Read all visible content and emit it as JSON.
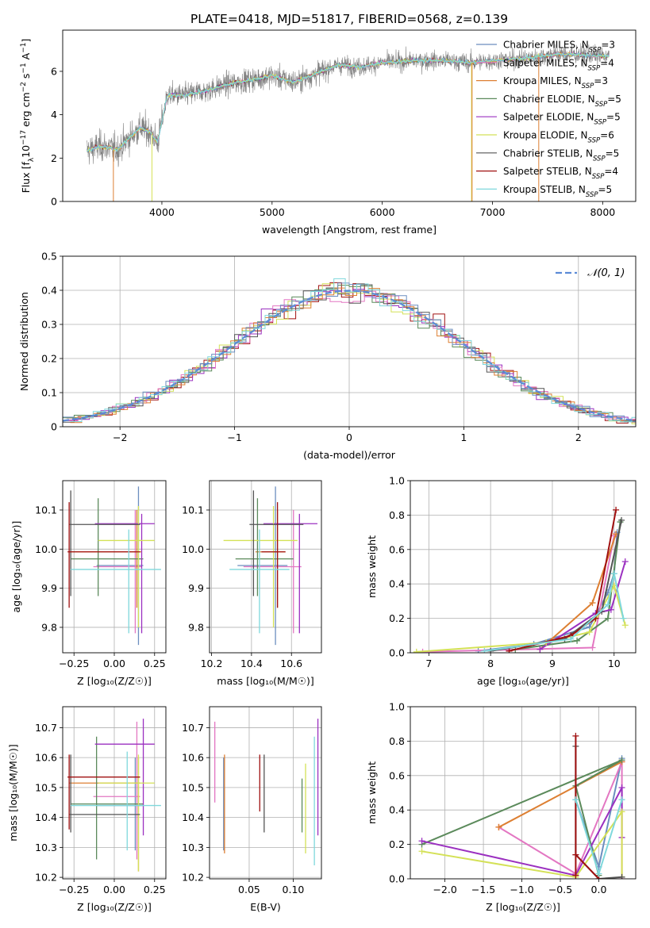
{
  "figure_title": "PLATE=0418, MJD=51817, FIBERID=0568, z=0.139",
  "models": [
    {
      "name": "Chabrier MILES, N",
      "sub": "SSP",
      "n": "=3",
      "color": "#6c8ebf"
    },
    {
      "name": "Salpeter MILES, N",
      "sub": "SSP",
      "n": "=4",
      "color": "#e377c2"
    },
    {
      "name": "Kroupa MILES, N",
      "sub": "SSP",
      "n": "=3",
      "color": "#dd7f32"
    },
    {
      "name": "Chabrier ELODIE, N",
      "sub": "SSP",
      "n": "=5",
      "color": "#5b8a5b"
    },
    {
      "name": "Salpeter ELODIE, N",
      "sub": "SSP",
      "n": "=5",
      "color": "#9b30c0"
    },
    {
      "name": "Kroupa ELODIE, N",
      "sub": "SSP",
      "n": "=6",
      "color": "#d4e157"
    },
    {
      "name": "Chabrier STELIB, N",
      "sub": "SSP",
      "n": "=5",
      "color": "#555555"
    },
    {
      "name": "Salpeter STELIB, N",
      "sub": "SSP",
      "n": "=4",
      "color": "#a01010"
    },
    {
      "name": "Kroupa STELIB, N",
      "sub": "SSP",
      "n": "=5",
      "color": "#7fd8dc"
    }
  ],
  "chart_data": [
    {
      "id": "spectrum",
      "type": "line",
      "xlabel": "wavelength [Angstrom, rest frame]",
      "ylabel_parts": [
        "Flux [f",
        "λ",
        "10",
        "−17",
        " erg cm",
        "−2",
        " s",
        "−1",
        " A",
        "−1",
        "]"
      ],
      "xlim": [
        3100,
        8300
      ],
      "ylim": [
        0,
        7.9
      ],
      "xticks": [
        4000,
        5000,
        6000,
        7000,
        8000
      ],
      "yticks": [
        0,
        2,
        4,
        6
      ],
      "observed_color": "#808080",
      "model_color": "#7fd8dc",
      "continuum": [
        [
          3320,
          2.35
        ],
        [
          3450,
          2.55
        ],
        [
          3600,
          2.4
        ],
        [
          3700,
          2.9
        ],
        [
          3800,
          3.4
        ],
        [
          3900,
          3.2
        ],
        [
          3960,
          2.7
        ],
        [
          4050,
          4.9
        ],
        [
          4200,
          4.9
        ],
        [
          4400,
          5.1
        ],
        [
          4600,
          5.4
        ],
        [
          4800,
          5.6
        ],
        [
          5000,
          5.8
        ],
        [
          5200,
          5.5
        ],
        [
          5400,
          5.9
        ],
        [
          5600,
          6.3
        ],
        [
          5800,
          6.2
        ],
        [
          6000,
          6.4
        ],
        [
          6300,
          6.5
        ],
        [
          6560,
          6.5
        ],
        [
          6800,
          6.4
        ],
        [
          7000,
          6.5
        ],
        [
          7300,
          6.6
        ],
        [
          7600,
          6.8
        ],
        [
          8050,
          6.7
        ]
      ]
    },
    {
      "id": "residuals",
      "type": "histogram",
      "xlabel": "(data-model)/error",
      "ylabel": "Normed distribution",
      "xlim": [
        -2.5,
        2.5
      ],
      "ylim": [
        0,
        0.5
      ],
      "xticks": [
        -2,
        -1,
        0,
        1,
        2
      ],
      "yticks": [
        0,
        0.1,
        0.2,
        0.3,
        0.4,
        0.5
      ],
      "bin_width": 0.1,
      "legend": "𝒩(0, 1)",
      "reference": {
        "mean": 0,
        "sigma": 1,
        "color": "#5b8bd6"
      }
    },
    {
      "id": "age_vs_Z",
      "type": "errorbar",
      "xlabel": "Z [log₁₀(Z/Z☉)]",
      "ylabel": "age  [log₁₀(age/yr)]",
      "xlim": [
        -0.32,
        0.32
      ],
      "ylim": [
        9.735,
        10.175
      ],
      "xticks": [
        -0.25,
        0,
        0.25
      ],
      "xtick_labels": [
        "−0.25",
        "0.00",
        "0.25"
      ],
      "yticks": [
        9.8,
        9.9,
        10.0,
        10.1
      ],
      "ytick_labels": [
        "9.8",
        "9.9",
        "10.0",
        "10.1"
      ],
      "points": [
        {
          "x": 0.15,
          "y": 9.958,
          "xlo": -0.11,
          "xhi": 0.18,
          "ylo": 9.755,
          "yhi": 10.16,
          "c": 0
        },
        {
          "x": 0.13,
          "y": 9.955,
          "xlo": -0.13,
          "xhi": 0.17,
          "ylo": 9.785,
          "yhi": 10.1,
          "c": 1
        },
        {
          "x": 0.14,
          "y": 9.993,
          "xlo": -0.28,
          "xhi": 0.17,
          "ylo": 9.85,
          "yhi": 10.1,
          "c": 2
        },
        {
          "x": -0.1,
          "y": 9.975,
          "xlo": -0.27,
          "xhi": 0.18,
          "ylo": 9.88,
          "yhi": 10.13,
          "c": 3
        },
        {
          "x": 0.17,
          "y": 10.065,
          "xlo": -0.12,
          "xhi": 0.25,
          "ylo": 9.785,
          "yhi": 10.09,
          "c": 4
        },
        {
          "x": 0.15,
          "y": 10.022,
          "xlo": -0.1,
          "xhi": 0.25,
          "ylo": 9.8,
          "yhi": 10.11,
          "c": 5
        },
        {
          "x": -0.27,
          "y": 10.063,
          "xlo": -0.28,
          "xhi": 0.16,
          "ylo": 9.88,
          "yhi": 10.15,
          "c": 6
        },
        {
          "x": -0.28,
          "y": 9.993,
          "xlo": -0.29,
          "xhi": 0.16,
          "ylo": 9.85,
          "yhi": 10.12,
          "c": 7
        },
        {
          "x": 0.09,
          "y": 9.948,
          "xlo": -0.27,
          "xhi": 0.29,
          "ylo": 9.785,
          "yhi": 10.05,
          "c": 8
        }
      ]
    },
    {
      "id": "age_vs_mass",
      "type": "errorbar",
      "xlabel": "mass [log₁₀(M/M☉)]",
      "ylabel": "",
      "xlim": [
        10.19,
        10.75
      ],
      "ylim": [
        9.735,
        10.175
      ],
      "xticks": [
        10.2,
        10.4,
        10.6
      ],
      "xtick_labels": [
        "10.2",
        "10.4",
        "10.6"
      ],
      "yticks": [
        9.8,
        9.9,
        10.0,
        10.1
      ],
      "ytick_labels": [
        "9.8",
        "9.9",
        "10.0",
        "10.1"
      ],
      "points": [
        {
          "x": 10.52,
          "y": 9.958,
          "xlo": 10.33,
          "xhi": 10.58,
          "ylo": 9.755,
          "yhi": 10.16,
          "c": 0
        },
        {
          "x": 10.61,
          "y": 9.955,
          "xlo": 10.36,
          "xhi": 10.65,
          "ylo": 9.785,
          "yhi": 10.1,
          "c": 1
        },
        {
          "x": 10.53,
          "y": 9.993,
          "xlo": 10.42,
          "xhi": 10.57,
          "ylo": 9.85,
          "yhi": 10.1,
          "c": 2
        },
        {
          "x": 10.43,
          "y": 9.975,
          "xlo": 10.32,
          "xhi": 10.61,
          "ylo": 9.88,
          "yhi": 10.13,
          "c": 3
        },
        {
          "x": 10.64,
          "y": 10.065,
          "xlo": 10.46,
          "xhi": 10.73,
          "ylo": 9.785,
          "yhi": 10.09,
          "c": 4
        },
        {
          "x": 10.51,
          "y": 10.022,
          "xlo": 10.26,
          "xhi": 10.63,
          "ylo": 9.8,
          "yhi": 10.11,
          "c": 5
        },
        {
          "x": 10.41,
          "y": 10.063,
          "xlo": 10.39,
          "xhi": 10.66,
          "ylo": 9.88,
          "yhi": 10.15,
          "c": 6
        },
        {
          "x": 10.53,
          "y": 9.993,
          "xlo": 10.45,
          "xhi": 10.57,
          "ylo": 9.85,
          "yhi": 10.12,
          "c": 7
        },
        {
          "x": 10.44,
          "y": 9.948,
          "xlo": 10.29,
          "xhi": 10.59,
          "ylo": 9.785,
          "yhi": 10.05,
          "c": 8
        }
      ]
    },
    {
      "id": "mass_weight_vs_age",
      "type": "line",
      "xlabel": "age  [log₁₀(age/yr)]",
      "ylabel": "mass weight",
      "xlim": [
        6.7,
        10.35
      ],
      "ylim": [
        0,
        1
      ],
      "xticks": [
        7,
        8,
        9,
        10
      ],
      "xtick_labels": [
        "7",
        "8",
        "9",
        "10"
      ],
      "yticks": [
        0,
        0.2,
        0.4,
        0.6,
        0.8,
        1.0
      ],
      "ytick_labels": [
        "0.0",
        "0.2",
        "0.4",
        "0.6",
        "0.8",
        "1.0"
      ],
      "series": [
        {
          "c": 0,
          "x": [
            7.8,
            8.7,
            9.6,
            9.9,
            10.0,
            10.05
          ],
          "y": [
            0.01,
            0.05,
            0.15,
            0.35,
            0.46,
            0.7
          ]
        },
        {
          "c": 1,
          "x": [
            6.9,
            9.65,
            10.0
          ],
          "y": [
            0.005,
            0.03,
            0.68
          ]
        },
        {
          "c": 2,
          "x": [
            8.8,
            9.65,
            10.03
          ],
          "y": [
            0.02,
            0.29,
            0.69
          ]
        },
        {
          "c": 3,
          "x": [
            8.4,
            9.4,
            9.9,
            10.1
          ],
          "y": [
            0.02,
            0.07,
            0.2,
            0.76
          ]
        },
        {
          "c": 4,
          "x": [
            8.8,
            9.7,
            9.95,
            10.18
          ],
          "y": [
            0.02,
            0.23,
            0.25,
            0.53
          ]
        },
        {
          "c": 5,
          "x": [
            6.8,
            8.9,
            9.6,
            10.0,
            10.18
          ],
          "y": [
            0.005,
            0.06,
            0.12,
            0.39,
            0.16
          ]
        },
        {
          "c": 6,
          "x": [
            8.0,
            9.2,
            9.8,
            10.12
          ],
          "y": [
            0.01,
            0.08,
            0.24,
            0.77
          ]
        },
        {
          "c": 7,
          "x": [
            8.3,
            9.3,
            9.7,
            10.03
          ],
          "y": [
            0.01,
            0.1,
            0.2,
            0.83
          ]
        },
        {
          "c": 8,
          "x": [
            7.9,
            9.3,
            9.9,
            10.0,
            10.15
          ],
          "y": [
            0.01,
            0.08,
            0.28,
            0.46,
            0.2
          ]
        }
      ]
    },
    {
      "id": "mass_vs_Z",
      "type": "errorbar",
      "xlabel": "Z [log₁₀(Z/Z☉)]",
      "ylabel": "mass [log₁₀(M/M☉)]",
      "xlim": [
        -0.32,
        0.32
      ],
      "ylim": [
        10.195,
        10.77
      ],
      "xticks": [
        -0.25,
        0,
        0.25
      ],
      "xtick_labels": [
        "−0.25",
        "0.00",
        "0.25"
      ],
      "yticks": [
        10.2,
        10.3,
        10.4,
        10.5,
        10.6,
        10.7
      ],
      "ytick_labels": [
        "10.2",
        "10.3",
        "10.4",
        "10.5",
        "10.6",
        "10.7"
      ],
      "points": [
        {
          "x": 0.13,
          "y": 10.44,
          "xlo": -0.11,
          "xhi": 0.18,
          "ylo": 10.29,
          "yhi": 10.6,
          "c": 0
        },
        {
          "x": 0.14,
          "y": 10.47,
          "xlo": -0.13,
          "xhi": 0.16,
          "ylo": 10.26,
          "yhi": 10.72,
          "c": 1
        },
        {
          "x": 0.15,
          "y": 10.515,
          "xlo": -0.28,
          "xhi": 0.16,
          "ylo": 10.22,
          "yhi": 10.6,
          "c": 2
        },
        {
          "x": -0.11,
          "y": 10.445,
          "xlo": -0.27,
          "xhi": 0.18,
          "ylo": 10.26,
          "yhi": 10.67,
          "c": 3
        },
        {
          "x": 0.18,
          "y": 10.645,
          "xlo": -0.12,
          "xhi": 0.25,
          "ylo": 10.34,
          "yhi": 10.73,
          "c": 4
        },
        {
          "x": 0.15,
          "y": 10.515,
          "xlo": -0.1,
          "xhi": 0.25,
          "ylo": 10.22,
          "yhi": 10.61,
          "c": 5
        },
        {
          "x": -0.27,
          "y": 10.41,
          "xlo": -0.28,
          "xhi": 0.16,
          "ylo": 10.35,
          "yhi": 10.61,
          "c": 6
        },
        {
          "x": -0.28,
          "y": 10.535,
          "xlo": -0.29,
          "xhi": 0.16,
          "ylo": 10.36,
          "yhi": 10.61,
          "c": 7
        },
        {
          "x": 0.08,
          "y": 10.44,
          "xlo": -0.27,
          "xhi": 0.29,
          "ylo": 10.29,
          "yhi": 10.62,
          "c": 8
        }
      ]
    },
    {
      "id": "mass_vs_EBV",
      "type": "errorbar",
      "xlabel": "E(B-V)",
      "ylabel": "",
      "xlim": [
        0.005,
        0.132
      ],
      "ylim": [
        10.195,
        10.77
      ],
      "xticks": [
        0.05,
        0.1
      ],
      "xtick_labels": [
        "0.05",
        "0.10"
      ],
      "yticks": [
        10.2,
        10.3,
        10.4,
        10.5,
        10.6,
        10.7
      ],
      "ytick_labels": [
        "10.2",
        "10.3",
        "10.4",
        "10.5",
        "10.6",
        "10.7"
      ],
      "points": [
        {
          "x": 0.021,
          "y": 10.44,
          "ylo": 10.29,
          "yhi": 10.6,
          "c": 0
        },
        {
          "x": 0.011,
          "y": 10.59,
          "ylo": 10.45,
          "yhi": 10.72,
          "c": 1
        },
        {
          "x": 0.022,
          "y": 10.445,
          "ylo": 10.28,
          "yhi": 10.61,
          "c": 2
        },
        {
          "x": 0.11,
          "y": 10.44,
          "ylo": 10.35,
          "yhi": 10.53,
          "c": 3
        },
        {
          "x": 0.128,
          "y": 10.555,
          "ylo": 10.34,
          "yhi": 10.73,
          "c": 4
        },
        {
          "x": 0.114,
          "y": 10.43,
          "ylo": 10.28,
          "yhi": 10.58,
          "c": 5
        },
        {
          "x": 0.067,
          "y": 10.48,
          "ylo": 10.35,
          "yhi": 10.61,
          "c": 6
        },
        {
          "x": 0.062,
          "y": 10.515,
          "ylo": 10.42,
          "yhi": 10.61,
          "c": 7
        },
        {
          "x": 0.124,
          "y": 10.44,
          "ylo": 10.24,
          "yhi": 10.67,
          "c": 8
        }
      ]
    },
    {
      "id": "mass_weight_vs_Z",
      "type": "line",
      "xlabel": "Z [log₁₀(Z/Z☉)]",
      "ylabel": "mass weight",
      "xlim": [
        -2.45,
        0.48
      ],
      "ylim": [
        0,
        1
      ],
      "xticks": [
        -2.0,
        -1.5,
        -1.0,
        -0.5,
        0.0
      ],
      "xtick_labels": [
        "−2.0",
        "−1.5",
        "−1.0",
        "−0.5",
        "0.0"
      ],
      "yticks": [
        0,
        0.2,
        0.4,
        0.6,
        0.8,
        1.0
      ],
      "ytick_labels": [
        "0.0",
        "0.2",
        "0.4",
        "0.6",
        "0.8",
        "1.0"
      ],
      "series": [
        {
          "c": 0,
          "x": [
            -0.3,
            0.0,
            0.3
          ],
          "y": [
            0.46,
            0.07,
            0.7
          ]
        },
        {
          "c": 1,
          "x": [
            -1.3,
            -0.3,
            0.3,
            0.3
          ],
          "y": [
            0.3,
            0.03,
            0.68,
            0.0
          ]
        },
        {
          "c": 2,
          "x": [
            -1.3,
            0.3,
            -1.3
          ],
          "y": [
            0.3,
            0.68,
            0.3
          ]
        },
        {
          "c": 3,
          "x": [
            -2.3,
            0.3,
            -0.3,
            0.0
          ],
          "y": [
            0.2,
            0.69,
            0.54,
            0.02
          ]
        },
        {
          "c": 4,
          "x": [
            -2.3,
            -0.3,
            0.3,
            0.3
          ],
          "y": [
            0.22,
            0.02,
            0.53,
            0.24
          ]
        },
        {
          "c": 5,
          "x": [
            -2.3,
            -0.3,
            0.3,
            0.3
          ],
          "y": [
            0.16,
            0.01,
            0.39,
            0.01
          ]
        },
        {
          "c": 6,
          "x": [
            -0.3,
            -0.3,
            0.0,
            0.3
          ],
          "y": [
            0.77,
            0.14,
            0.0,
            0.01
          ]
        },
        {
          "c": 7,
          "x": [
            -0.3,
            -0.3,
            -0.3,
            0.0
          ],
          "y": [
            0.83,
            0.02,
            0.14,
            0.0
          ]
        },
        {
          "c": 8,
          "x": [
            -0.3,
            0.0,
            0.3
          ],
          "y": [
            0.46,
            0.03,
            0.46
          ]
        }
      ]
    }
  ]
}
